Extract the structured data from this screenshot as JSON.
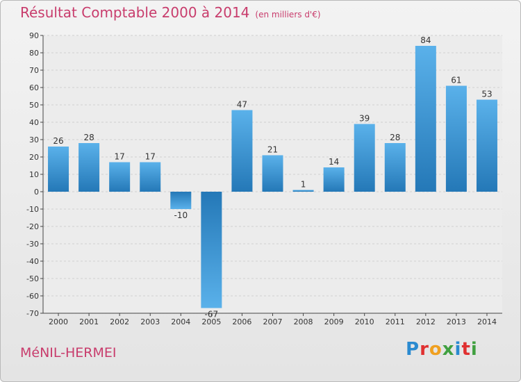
{
  "title": "Résultat Comptable 2000 à 2014",
  "subtitle": "(en milliers d'€)",
  "commune": "MéNIL-HERMEI",
  "logo": {
    "text": "Proxiti",
    "colors": [
      "#2a8ad0",
      "#e03030",
      "#f0a020",
      "#40a040",
      "#2a8ad0",
      "#e03030",
      "#40a040"
    ]
  },
  "colors": {
    "title": "#c83c6c",
    "bar_light": "#5ab1ea",
    "bar_dark": "#2478b7"
  },
  "chart_data": {
    "type": "bar",
    "title": "Résultat Comptable 2000 à 2014",
    "ylabel": "en milliers d'€",
    "categories": [
      "2000",
      "2001",
      "2002",
      "2003",
      "2004",
      "2005",
      "2006",
      "2007",
      "2008",
      "2009",
      "2010",
      "2011",
      "2012",
      "2013",
      "2014"
    ],
    "values": [
      26,
      28,
      17,
      17,
      -10,
      -67,
      47,
      21,
      1,
      14,
      39,
      28,
      84,
      61,
      53
    ],
    "ylim": [
      -70,
      90
    ],
    "yticks": [
      -70,
      -60,
      -50,
      -40,
      -30,
      -20,
      -10,
      0,
      10,
      20,
      30,
      40,
      50,
      60,
      70,
      80,
      90
    ],
    "grid": true
  }
}
